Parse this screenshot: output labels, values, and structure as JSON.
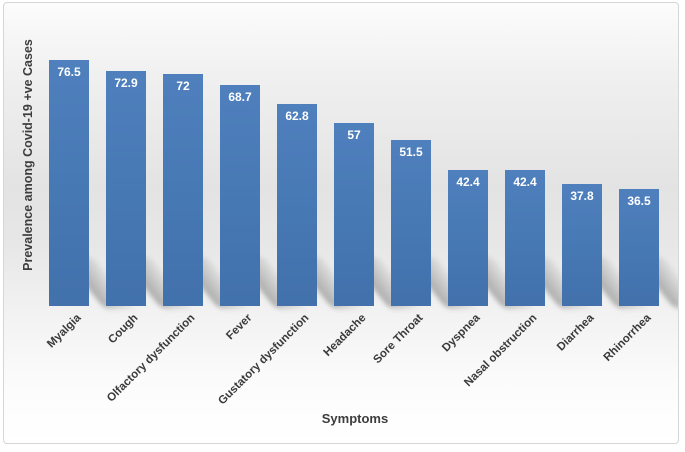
{
  "chart_data": {
    "type": "bar",
    "title": "",
    "xlabel": "Symptoms",
    "ylabel": "Prevalence among Covid-19 +ve Cases",
    "categories": [
      "Myalgia",
      "Cough",
      "Olfactory dysfunction",
      "Fever",
      "Gustatory dysfunction",
      "Headache",
      "Sore Throat",
      "Dyspnea",
      "Nasal obstruction",
      "Diarrhea",
      "Rhinorrhea"
    ],
    "values": [
      76.5,
      72.9,
      72,
      68.7,
      62.8,
      57,
      51.5,
      42.4,
      42.4,
      37.8,
      36.5
    ],
    "ylim": [
      0,
      92
    ],
    "grid": false,
    "legend": false,
    "data_labels_position": "inside-end",
    "colors": {
      "bar": "#4A7AB5",
      "data_label_text": "#FFFFFF",
      "axis_title_text": "#3D3D3D",
      "category_label_text": "#3A3A3A",
      "frame_border": "#D6D6D6",
      "background_top": "#FCFCFC",
      "background_mid": "#E3E3E3",
      "background_bottom": "#FFFFFF"
    }
  }
}
